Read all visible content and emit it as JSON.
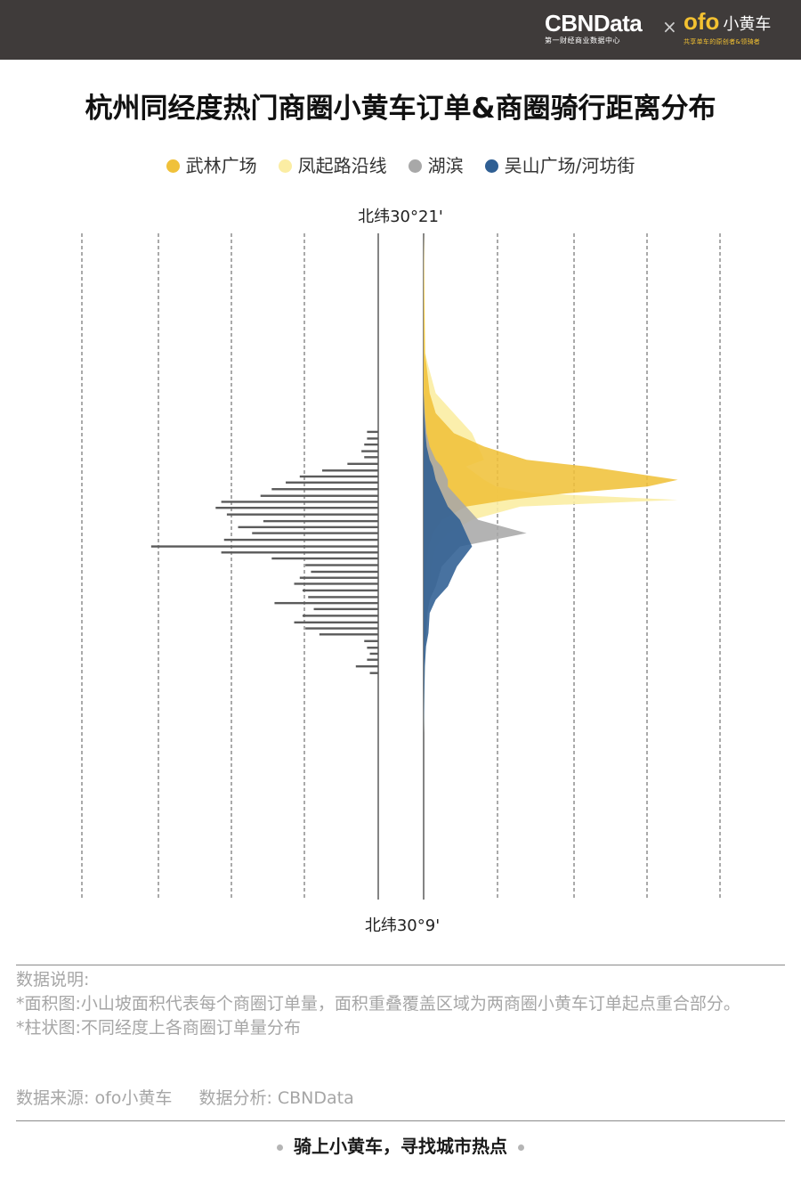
{
  "header": {
    "brand_name": "CBNData",
    "brand_sub": "第一财经商业数据中心",
    "x_mark": "×",
    "partner_logo": "ofo",
    "partner_cn": "小黄车",
    "partner_sub": "共享单车的原创者&领骑者"
  },
  "title": "杭州同经度热门商圈小黄车订单&商圈骑行距离分布",
  "legend": [
    {
      "label": "武林广场",
      "color": "#f0c13a"
    },
    {
      "label": "凤起路沿线",
      "color": "#fbeda3"
    },
    {
      "label": "湖滨",
      "color": "#a8a8a8"
    },
    {
      "label": "吴山广场/河坊街",
      "color": "#2f5f93"
    }
  ],
  "colors": {
    "bars": "#5b5b5b",
    "gridline": "#555555",
    "axis": "#333333"
  },
  "chart_data": {
    "type": "bar",
    "y_top_label": "北纬30°21'",
    "y_bottom_label": "北纬30°9'",
    "latitude_range": [
      "北纬30°9'",
      "北纬30°21'"
    ],
    "gridlines": "dashed vertical",
    "bar_chart": {
      "orientation": "horizontal, extending left",
      "description_key": "柱状图",
      "values_relative": [
        0.04,
        0.04,
        0.05,
        0.06,
        0.05,
        0.11,
        0.2,
        0.28,
        0.33,
        0.38,
        0.42,
        0.56,
        0.58,
        0.54,
        0.41,
        0.5,
        0.45,
        0.55,
        0.81,
        0.56,
        0.38,
        0.26,
        0.24,
        0.28,
        0.3,
        0.27,
        0.25,
        0.37,
        0.23,
        0.27,
        0.3,
        0.26,
        0.21,
        0.05,
        0.04,
        0.03,
        0.04,
        0.08,
        0.03
      ],
      "lat_positions": [
        0.298,
        0.308,
        0.317,
        0.327,
        0.336,
        0.346,
        0.356,
        0.365,
        0.374,
        0.384,
        0.394,
        0.403,
        0.412,
        0.422,
        0.432,
        0.441,
        0.45,
        0.46,
        0.47,
        0.479,
        0.488,
        0.498,
        0.508,
        0.517,
        0.526,
        0.536,
        0.546,
        0.555,
        0.564,
        0.574,
        0.584,
        0.593,
        0.602,
        0.612,
        0.622,
        0.631,
        0.64,
        0.65,
        0.66
      ]
    },
    "area_chart": {
      "description_key": "面积图",
      "lat_axis": [
        0.0,
        0.18,
        0.2,
        0.24,
        0.27,
        0.3,
        0.32,
        0.34,
        0.35,
        0.37,
        0.38,
        0.39,
        0.4,
        0.41,
        0.43,
        0.45,
        0.47,
        0.5,
        0.53,
        0.55,
        0.57,
        0.6,
        0.62,
        0.65,
        0.7,
        0.75,
        1.0
      ],
      "series": [
        {
          "name": "武林广场",
          "values": [
            0.0,
            0.002,
            0.005,
            0.01,
            0.02,
            0.05,
            0.1,
            0.17,
            0.27,
            0.42,
            0.37,
            0.24,
            0.14,
            0.07,
            0.03,
            0.015,
            0.008,
            0.004,
            0.003,
            0.002,
            0.001,
            0.0,
            0.0,
            0.0,
            0.0,
            0.0,
            0.0
          ]
        },
        {
          "name": "凤起路沿线",
          "values": [
            0.0,
            0.003,
            0.008,
            0.02,
            0.05,
            0.08,
            0.09,
            0.1,
            0.07,
            0.1,
            0.12,
            0.18,
            0.42,
            0.16,
            0.08,
            0.04,
            0.02,
            0.012,
            0.01,
            0.01,
            0.006,
            0.005,
            0.003,
            0.002,
            0.001,
            0.0,
            0.0
          ]
        },
        {
          "name": "湖滨",
          "values": [
            0.0,
            0.0,
            0.0,
            0.0,
            0.002,
            0.005,
            0.01,
            0.02,
            0.03,
            0.04,
            0.04,
            0.05,
            0.06,
            0.07,
            0.09,
            0.17,
            0.06,
            0.03,
            0.02,
            0.01,
            0.006,
            0.004,
            0.002,
            0.001,
            0.0,
            0.0,
            0.0
          ]
        },
        {
          "name": "吴山广场/河坊街",
          "values": [
            0.0,
            0.0,
            0.0,
            0.0,
            0.001,
            0.003,
            0.005,
            0.01,
            0.015,
            0.02,
            0.025,
            0.03,
            0.035,
            0.04,
            0.06,
            0.07,
            0.08,
            0.055,
            0.04,
            0.02,
            0.01,
            0.008,
            0.004,
            0.002,
            0.001,
            0.0,
            0.0
          ]
        }
      ]
    }
  },
  "notes": {
    "heading": "数据说明:",
    "items": [
      {
        "label": "*面积图:",
        "text": "小山坡面积代表每个商圈订单量，面积重叠覆盖区域为两商圈小黄车订单起点重合部分。"
      },
      {
        "label": "*柱状图:",
        "text": "不同经度上各商圈订单量分布"
      }
    ]
  },
  "source": {
    "data_source": "数据来源: ofo小黄车",
    "data_analysis": "数据分析: CBNData"
  },
  "slogan": "骑上小黄车，寻找城市热点"
}
